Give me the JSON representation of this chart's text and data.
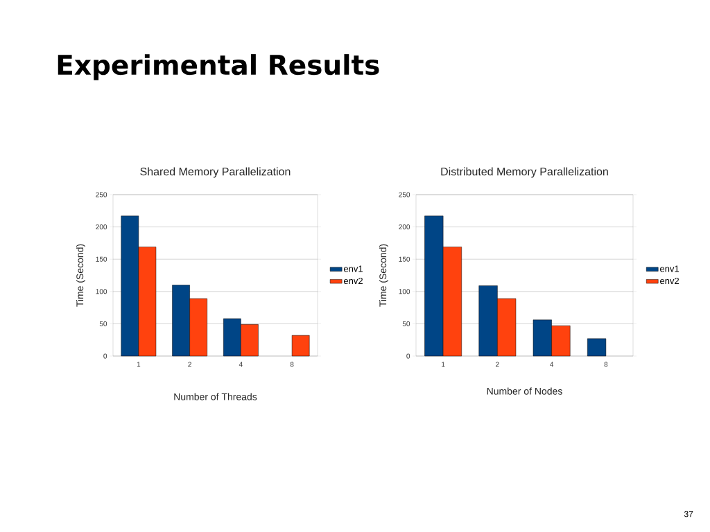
{
  "chart_data": [
    {
      "type": "other",
      "title": "Experimental Results",
      "annotations": [
        "37"
      ]
    },
    {
      "type": "bar",
      "title": "Shared Memory Parallelization",
      "xlabel": "Number of Threads",
      "ylabel": "Time (Second)",
      "categories": [
        "1",
        "2",
        "4",
        "8"
      ],
      "series": [
        {
          "name": "env1",
          "color": "#004586",
          "values": [
            217,
            110,
            58,
            null
          ]
        },
        {
          "name": "env2",
          "color": "#ff420e",
          "values": [
            169,
            89,
            49,
            32
          ]
        }
      ],
      "ylim": [
        0,
        250
      ],
      "yticks": [
        0,
        50,
        100,
        150,
        200,
        250
      ],
      "grid": "y",
      "legend": "right"
    },
    {
      "type": "bar",
      "title": "Distributed Memory Parallelization",
      "xlabel": "Number of Nodes",
      "ylabel": "Time (Second)",
      "categories": [
        "1",
        "2",
        "4",
        "8"
      ],
      "series": [
        {
          "name": "env1",
          "color": "#004586",
          "values": [
            217,
            109,
            56,
            27
          ]
        },
        {
          "name": "env2",
          "color": "#ff420e",
          "values": [
            169,
            89,
            47,
            null
          ]
        }
      ],
      "ylim": [
        0,
        250
      ],
      "yticks": [
        0,
        50,
        100,
        150,
        200,
        250
      ],
      "grid": "y",
      "legend": "right"
    }
  ]
}
